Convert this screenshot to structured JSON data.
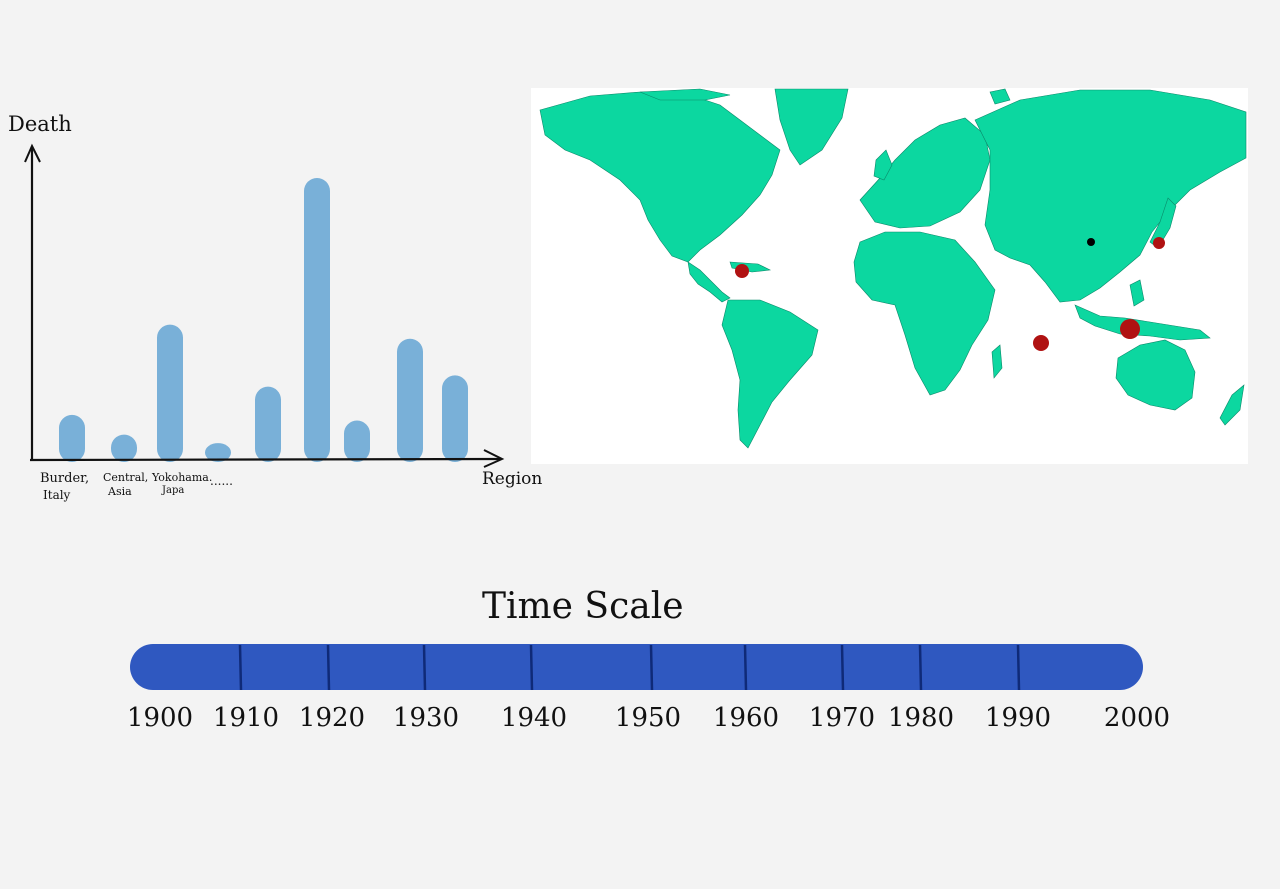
{
  "sketch": {
    "y_axis_label": "Death",
    "x_axis_label": "Region",
    "region_labels": [
      {
        "line1": "Burder,",
        "line2": "Italy"
      },
      {
        "line1": "Central,",
        "line2": "Asia"
      },
      {
        "line1": "Yokohama.",
        "line2": "Japa"
      },
      {
        "line1": "......",
        "line2": ""
      }
    ],
    "bar_colour": "#79b0d8",
    "bars_relative_height": [
      0.16,
      0.09,
      0.48,
      0.06,
      0.26,
      1.0,
      0.14,
      0.43,
      0.3
    ]
  },
  "map": {
    "land_colour": "#0cd7a0",
    "marker_colour_large": "#b01212",
    "marker_colour_small": "#000000",
    "markers": [
      {
        "name": "caribbean",
        "kind": "large"
      },
      {
        "name": "japan",
        "kind": "large"
      },
      {
        "name": "china",
        "kind": "small"
      },
      {
        "name": "indian-ocean",
        "kind": "large"
      },
      {
        "name": "indonesia",
        "kind": "large"
      }
    ]
  },
  "timeline": {
    "title": "Time Scale",
    "bar_colour": "#2f58c0",
    "ticks": [
      "1900",
      "1910",
      "1920",
      "1930",
      "1940",
      "1950",
      "1960",
      "1970",
      "1980",
      "1990",
      "2000"
    ]
  }
}
